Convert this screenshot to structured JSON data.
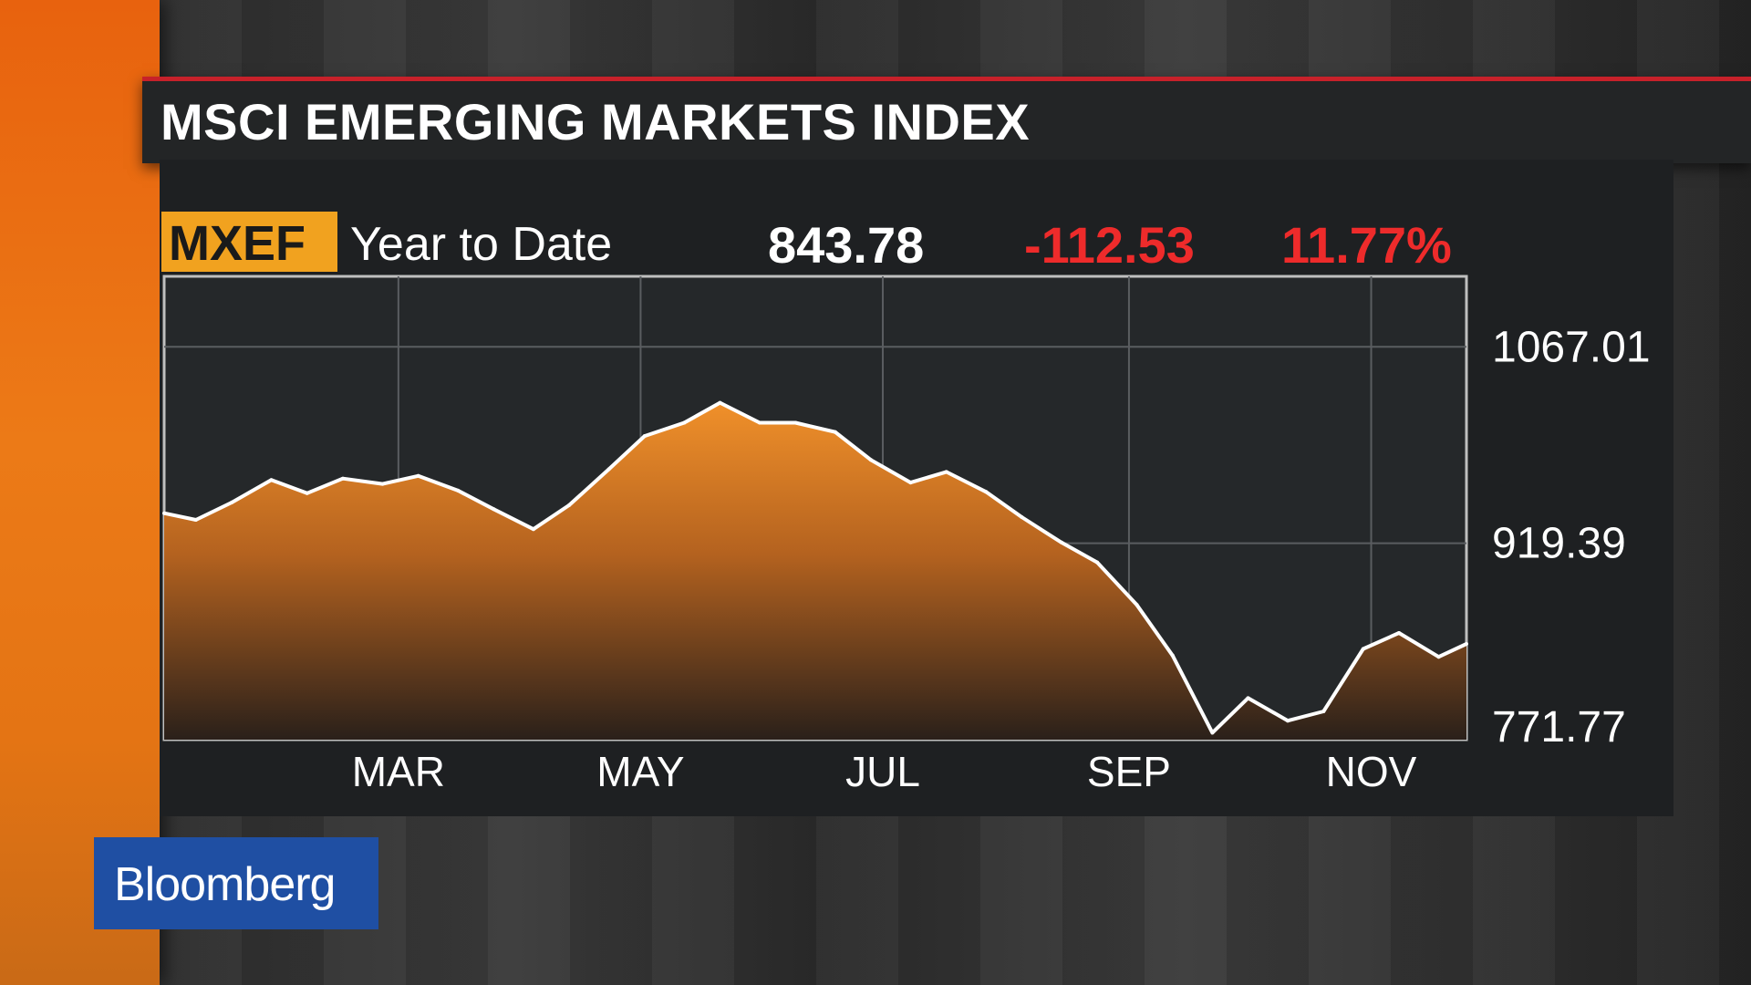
{
  "title": "MSCI EMERGING MARKETS INDEX",
  "header": {
    "ticker": "MXEF",
    "period": "Year to Date",
    "last_value": "843.78",
    "net_change": "-112.53",
    "pct_change": "11.77%"
  },
  "logo": "Bloomberg",
  "colors": {
    "accent_orange": "#f1a21f",
    "negative_red": "#ee2b2b",
    "title_rule_red": "#c7212a",
    "brand_blue": "#1f4fa3",
    "area_fill_top": "#f0902a",
    "line": "#ffffff"
  },
  "chart_data": {
    "type": "area",
    "title": "MSCI EMERGING MARKETS INDEX",
    "xlabel": "",
    "ylabel": "",
    "x_tick_labels": [
      "MAR",
      "MAY",
      "JUL",
      "SEP",
      "NOV"
    ],
    "y_tick_labels": [
      "1067.01",
      "919.39",
      "771.77"
    ],
    "y_ticks": [
      1067.01,
      919.39,
      771.77
    ],
    "ylim": [
      771.77,
      1120
    ],
    "xlim": [
      "2015-01-01",
      "2015-11-25"
    ],
    "grid": true,
    "series": [
      {
        "x": [
          "2015-01-01",
          "2015-01-09",
          "2015-01-18",
          "2015-01-28",
          "2015-02-06",
          "2015-02-15",
          "2015-02-25",
          "2015-03-06",
          "2015-03-16",
          "2015-03-25",
          "2015-04-04",
          "2015-04-13",
          "2015-04-23",
          "2015-05-02",
          "2015-05-12",
          "2015-05-21",
          "2015-05-31",
          "2015-06-09",
          "2015-06-19",
          "2015-06-28",
          "2015-07-08",
          "2015-07-17",
          "2015-07-27",
          "2015-08-05",
          "2015-08-15",
          "2015-08-24",
          "2015-09-03",
          "2015-09-12",
          "2015-09-22",
          "2015-10-01",
          "2015-10-11",
          "2015-10-20",
          "2015-10-30",
          "2015-11-08",
          "2015-11-18",
          "2015-11-25"
        ],
        "values": [
          942,
          937,
          950,
          967,
          957,
          968,
          964,
          970,
          959,
          945,
          930,
          948,
          975,
          1000,
          1010,
          1025,
          1010,
          1010,
          1003,
          982,
          965,
          973,
          958,
          939,
          920,
          905,
          873,
          835,
          777,
          803,
          786,
          793,
          840,
          852,
          834,
          843.78
        ]
      }
    ]
  }
}
